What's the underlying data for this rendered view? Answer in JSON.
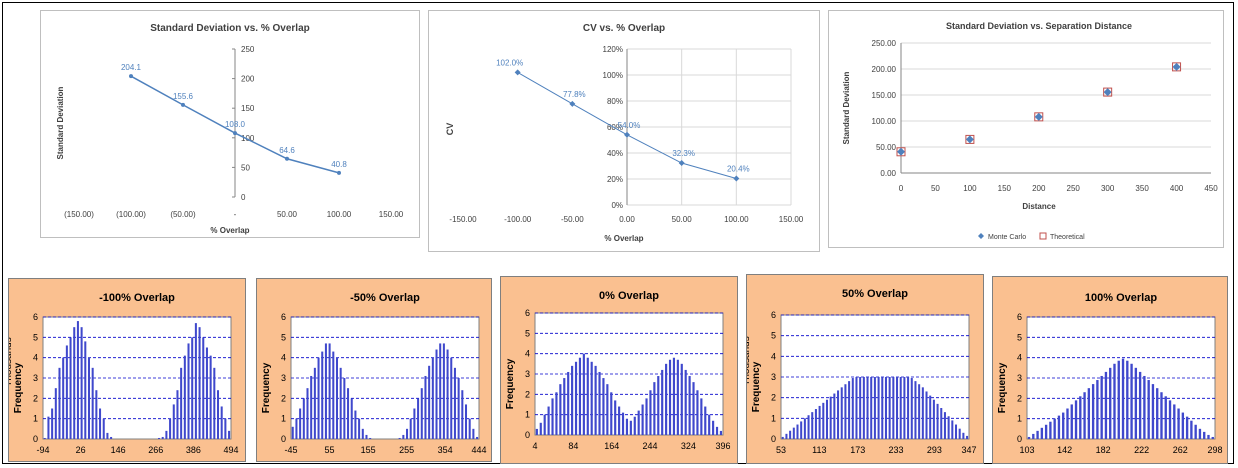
{
  "chart_data": [
    {
      "type": "line",
      "title": "Standard Deviation vs. % Overlap",
      "xlabel": "% Overlap",
      "ylabel": "Standard Deviation",
      "xlim": [
        -150,
        150
      ],
      "ylim": [
        0,
        250
      ],
      "x_tick_labels": [
        "(150.00)",
        "(100.00)",
        "(50.00)",
        "-",
        "50.00",
        "100.00",
        "150.00"
      ],
      "x_ticks": [
        -150,
        -100,
        -50,
        0,
        50,
        100,
        150
      ],
      "y_tick_labels": [
        "0",
        "50",
        "100",
        "150",
        "200",
        "250"
      ],
      "y_ticks": [
        0,
        50,
        100,
        150,
        200,
        250
      ],
      "x": [
        -100,
        -50,
        0,
        50,
        100
      ],
      "values": [
        204.1,
        155.6,
        108.0,
        64.6,
        40.8
      ],
      "data_labels": [
        "204.1",
        "155.6",
        "108.0",
        "64.6",
        "40.8"
      ],
      "color": "#4f81bd"
    },
    {
      "type": "line",
      "title": "CV vs. % Overlap",
      "xlabel": "% Overlap",
      "ylabel": "CV",
      "xlim": [
        -150,
        150
      ],
      "ylim": [
        0,
        120
      ],
      "x_tick_labels": [
        "-150.00",
        "-100.00",
        "-50.00",
        "0.00",
        "50.00",
        "100.00",
        "150.00"
      ],
      "x_ticks": [
        -150,
        -100,
        -50,
        0,
        50,
        100,
        150
      ],
      "y_tick_labels": [
        "0%",
        "20%",
        "40%",
        "60%",
        "80%",
        "100%",
        "120%"
      ],
      "y_ticks": [
        0,
        20,
        40,
        60,
        80,
        100,
        120
      ],
      "x": [
        -100,
        -50,
        0,
        50,
        100
      ],
      "values": [
        102.0,
        77.8,
        54.0,
        32.3,
        20.4
      ],
      "data_labels": [
        "102.0%",
        "77.8%",
        "54.0%",
        "32.3%",
        "20.4%"
      ],
      "grid": true,
      "color": "#4f81bd"
    },
    {
      "type": "scatter",
      "title": "Standard Deviation vs. Separation Distance",
      "xlabel": "Distance",
      "ylabel": "Standard Deviation",
      "xlim": [
        0,
        450
      ],
      "ylim": [
        0,
        250
      ],
      "x_tick_labels": [
        "0",
        "50",
        "100",
        "150",
        "200",
        "250",
        "300",
        "350",
        "400",
        "450"
      ],
      "x_ticks": [
        0,
        50,
        100,
        150,
        200,
        250,
        300,
        350,
        400,
        450
      ],
      "y_tick_labels": [
        "0.00",
        "50.00",
        "100.00",
        "150.00",
        "200.00",
        "250.00"
      ],
      "y_ticks": [
        0,
        50,
        100,
        150,
        200,
        250
      ],
      "grid": true,
      "legend": "bottom",
      "series": [
        {
          "name": "Monte Carlo",
          "x": [
            0,
            100,
            200,
            300,
            400
          ],
          "values": [
            40.8,
            64.6,
            108.0,
            155.6,
            204.1
          ],
          "marker": "diamond",
          "color": "#4f81bd"
        },
        {
          "name": "Theoretical",
          "x": [
            0,
            100,
            200,
            300,
            400
          ],
          "values": [
            40.8,
            64.6,
            108.0,
            155.6,
            204.1
          ],
          "marker": "square-open",
          "color": "#c0504d"
        }
      ]
    },
    {
      "type": "bar",
      "title": "-100% Overlap",
      "ylabel": "Frequency",
      "unit_label": "Thousands",
      "ylim": [
        0,
        6
      ],
      "y_tick_labels": [
        "0",
        "1",
        "2",
        "3",
        "4",
        "5",
        "6"
      ],
      "x_tick_labels": [
        "-94",
        "26",
        "146",
        "266",
        "386",
        "494"
      ],
      "x_tick_fracs": [
        0.0,
        0.2,
        0.4,
        0.6,
        0.8,
        1.0
      ],
      "grid": true,
      "values": [
        0.05,
        1.1,
        1.5,
        2.5,
        3.5,
        4.0,
        4.6,
        5.0,
        5.5,
        5.8,
        5.5,
        4.8,
        4.0,
        3.5,
        2.4,
        1.5,
        1.0,
        0.3,
        0.1,
        0,
        0,
        0,
        0,
        0,
        0,
        0,
        0,
        0,
        0,
        0,
        0,
        0.05,
        0.1,
        0.4,
        1.0,
        1.7,
        2.4,
        3.5,
        4.1,
        4.7,
        5.0,
        5.7,
        5.5,
        5.0,
        4.5,
        4.1,
        3.5,
        2.4,
        1.6,
        1.0,
        0.4
      ],
      "color": "#3f48cc"
    },
    {
      "type": "bar",
      "title": "-50% Overlap",
      "ylabel": "Frequency",
      "ylim": [
        0,
        6
      ],
      "y_tick_labels": [
        "0",
        "1",
        "2",
        "3",
        "4",
        "5",
        "6"
      ],
      "x_tick_labels": [
        "-45",
        "55",
        "155",
        "255",
        "354",
        "444"
      ],
      "x_tick_fracs": [
        0.0,
        0.205,
        0.41,
        0.615,
        0.82,
        1.0
      ],
      "grid": true,
      "values": [
        0.6,
        1.0,
        1.5,
        2.0,
        2.5,
        3.1,
        3.5,
        4.0,
        4.3,
        4.7,
        4.7,
        4.3,
        4.0,
        3.5,
        3.0,
        2.5,
        2.0,
        1.4,
        1.0,
        0.5,
        0.2,
        0.05,
        0,
        0,
        0,
        0,
        0,
        0,
        0,
        0.05,
        0.2,
        0.5,
        1.0,
        1.5,
        2.0,
        2.5,
        3.1,
        3.6,
        4.0,
        4.4,
        4.7,
        4.7,
        4.4,
        4.0,
        3.5,
        3.0,
        2.4,
        1.7,
        1.0,
        0.5,
        0.1
      ],
      "color": "#3f48cc"
    },
    {
      "type": "bar",
      "title": "0% Overlap",
      "ylabel": "Frequency",
      "ylim": [
        0,
        6
      ],
      "y_tick_labels": [
        "0",
        "1",
        "2",
        "3",
        "4",
        "5",
        "6"
      ],
      "x_tick_labels": [
        "4",
        "84",
        "164",
        "244",
        "324",
        "396"
      ],
      "x_tick_fracs": [
        0.0,
        0.204,
        0.408,
        0.612,
        0.816,
        1.0
      ],
      "grid": true,
      "values": [
        0.3,
        0.6,
        1.0,
        1.4,
        1.8,
        2.1,
        2.5,
        2.8,
        3.1,
        3.4,
        3.6,
        3.8,
        4.0,
        3.8,
        3.6,
        3.4,
        3.1,
        2.8,
        2.5,
        2.1,
        1.7,
        1.4,
        1.1,
        0.8,
        0.7,
        0.9,
        1.2,
        1.5,
        1.8,
        2.2,
        2.6,
        2.9,
        3.2,
        3.5,
        3.7,
        3.8,
        3.7,
        3.5,
        3.2,
        2.9,
        2.6,
        2.2,
        1.8,
        1.4,
        1.0,
        0.7,
        0.4,
        0.2
      ],
      "color": "#3f48cc"
    },
    {
      "type": "bar",
      "title": "50% Overlap",
      "ylabel": "Frequency",
      "unit_label": "Thousands",
      "ylim": [
        0,
        6
      ],
      "y_tick_labels": [
        "0",
        "1",
        "2",
        "3",
        "4",
        "5",
        "6"
      ],
      "x_tick_labels": [
        "53",
        "113",
        "173",
        "233",
        "293",
        "347"
      ],
      "x_tick_fracs": [
        0.0,
        0.204,
        0.408,
        0.612,
        0.816,
        1.0
      ],
      "grid": true,
      "values": [
        0.1,
        0.25,
        0.4,
        0.55,
        0.7,
        0.85,
        1.0,
        1.15,
        1.3,
        1.45,
        1.6,
        1.75,
        1.9,
        2.05,
        2.2,
        2.35,
        2.5,
        2.65,
        2.8,
        2.95,
        3.0,
        3.0,
        3.0,
        3.0,
        3.0,
        3.0,
        3.0,
        3.0,
        3.0,
        3.0,
        3.0,
        3.0,
        3.0,
        3.0,
        3.0,
        2.95,
        2.8,
        2.65,
        2.5,
        2.3,
        2.1,
        1.9,
        1.7,
        1.5,
        1.3,
        1.1,
        0.9,
        0.7,
        0.5,
        0.3,
        0.15
      ],
      "color": "#3f48cc"
    },
    {
      "type": "bar",
      "title": "100% Overlap",
      "ylabel": "Frequency",
      "ylim": [
        0,
        6
      ],
      "y_tick_labels": [
        "0",
        "1",
        "2",
        "3",
        "4",
        "5",
        "6"
      ],
      "x_tick_labels": [
        "103",
        "142",
        "182",
        "222",
        "262",
        "298"
      ],
      "x_tick_fracs": [
        0.0,
        0.2,
        0.405,
        0.61,
        0.815,
        1.0
      ],
      "grid": true,
      "values": [
        0.1,
        0.25,
        0.4,
        0.55,
        0.7,
        0.85,
        1.0,
        1.15,
        1.3,
        1.5,
        1.7,
        1.9,
        2.1,
        2.3,
        2.5,
        2.7,
        2.9,
        3.1,
        3.3,
        3.5,
        3.7,
        3.85,
        3.95,
        3.85,
        3.7,
        3.5,
        3.3,
        3.1,
        2.9,
        2.7,
        2.5,
        2.3,
        2.1,
        1.9,
        1.7,
        1.5,
        1.3,
        1.1,
        0.9,
        0.7,
        0.5,
        0.35,
        0.2,
        0.1
      ],
      "color": "#3f48cc"
    }
  ]
}
